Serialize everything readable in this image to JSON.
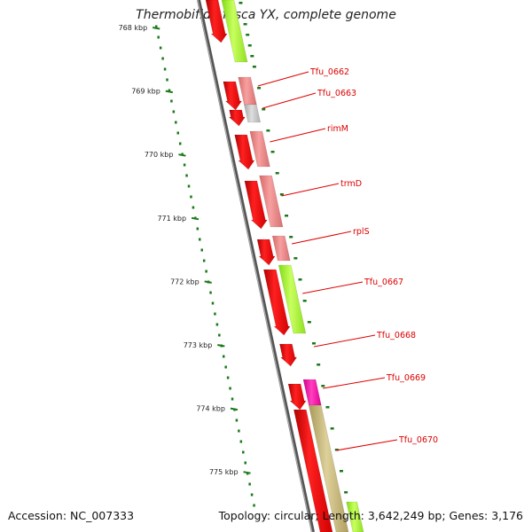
{
  "title": "Thermobifida fusca YX, complete genome",
  "footer": {
    "accession": "Accession: NC_007333",
    "topology": "Topology: circular; Length: 3,642,249 bp; Genes: 3,176"
  },
  "scale": {
    "labels": [
      "768 kbp",
      "769 kbp",
      "770 kbp",
      "771 kbp",
      "772 kbp",
      "773 kbp",
      "774 kbp",
      "775 kbp"
    ]
  },
  "genes": [
    {
      "name": "Tfu_0662"
    },
    {
      "name": "Tfu_0663"
    },
    {
      "name": "rimM"
    },
    {
      "name": "trmD"
    },
    {
      "name": "rplS"
    },
    {
      "name": "Tfu_0667"
    },
    {
      "name": "Tfu_0668"
    },
    {
      "name": "Tfu_0669"
    },
    {
      "name": "Tfu_0670"
    }
  ],
  "colors": {
    "cds": "#ff0000",
    "pink": "#f08080",
    "gray": "#c8c8c8",
    "lime": "#a8ff30",
    "magenta": "#ff00aa",
    "olive": "#c8b878",
    "backbone": "#808080",
    "ticks": "#1a7a1a",
    "label_color": "#dd0000"
  }
}
